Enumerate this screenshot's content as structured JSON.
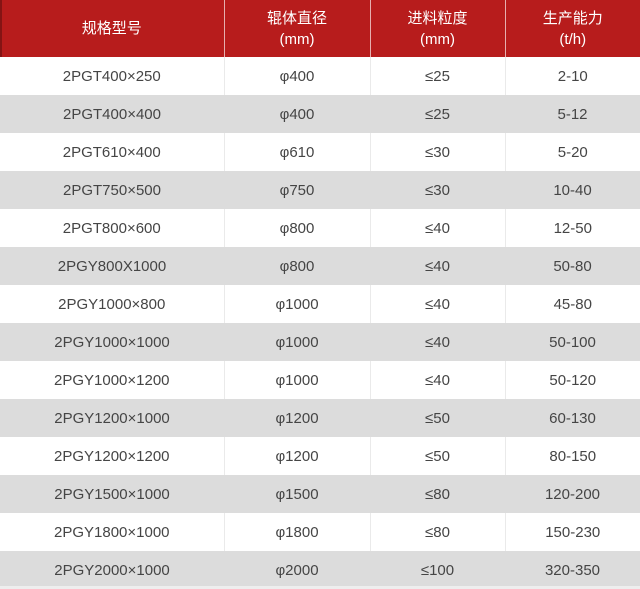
{
  "table": {
    "columns": [
      {
        "title": "规格型号",
        "unit": ""
      },
      {
        "title": "辊体直径",
        "unit": "(mm)"
      },
      {
        "title": "进料粒度",
        "unit": "(mm)"
      },
      {
        "title": "生产能力",
        "unit": "(t/h)"
      }
    ],
    "rows": [
      [
        "2PGT400×250",
        "φ400",
        "≤25",
        "2-10"
      ],
      [
        "2PGT400×400",
        "φ400",
        "≤25",
        "5-12"
      ],
      [
        "2PGT610×400",
        "φ610",
        "≤30",
        "5-20"
      ],
      [
        "2PGT750×500",
        "φ750",
        "≤30",
        "10-40"
      ],
      [
        "2PGT800×600",
        "φ800",
        "≤40",
        "12-50"
      ],
      [
        "2PGY800X1000",
        "φ800",
        "≤40",
        "50-80"
      ],
      [
        "2PGY1000×800",
        "φ1000",
        "≤40",
        "45-80"
      ],
      [
        "2PGY1000×1000",
        "φ1000",
        "≤40",
        "50-100"
      ],
      [
        "2PGY1000×1200",
        "φ1000",
        "≤40",
        "50-120"
      ],
      [
        "2PGY1200×1000",
        "φ1200",
        "≤50",
        "60-130"
      ],
      [
        "2PGY1200×1200",
        "φ1200",
        "≤50",
        "80-150"
      ],
      [
        "2PGY1500×1000",
        "φ1500",
        "≤80",
        "120-200"
      ],
      [
        "2PGY1800×1000",
        "φ1800",
        "≤80",
        "150-230"
      ],
      [
        "2PGY2000×1000",
        "φ2000",
        "≤100",
        "320-350"
      ]
    ]
  },
  "colors": {
    "header_bg": "#b71c1c",
    "header_text": "#ffffff",
    "row_bg": "#ffffff",
    "row_alt_bg": "#dcdcdc",
    "body_text": "#454545",
    "divider": "#eaeaea"
  },
  "chart_data": {
    "type": "table",
    "columns": [
      "规格型号",
      "辊体直径 (mm)",
      "进料粒度 (mm)",
      "生产能力 (t/h)"
    ],
    "rows": [
      [
        "2PGT400×250",
        "φ400",
        "≤25",
        "2-10"
      ],
      [
        "2PGT400×400",
        "φ400",
        "≤25",
        "5-12"
      ],
      [
        "2PGT610×400",
        "φ610",
        "≤30",
        "5-20"
      ],
      [
        "2PGT750×500",
        "φ750",
        "≤30",
        "10-40"
      ],
      [
        "2PGT800×600",
        "φ800",
        "≤40",
        "12-50"
      ],
      [
        "2PGY800X1000",
        "φ800",
        "≤40",
        "50-80"
      ],
      [
        "2PGY1000×800",
        "φ1000",
        "≤40",
        "45-80"
      ],
      [
        "2PGY1000×1000",
        "φ1000",
        "≤40",
        "50-100"
      ],
      [
        "2PGY1000×1200",
        "φ1000",
        "≤40",
        "50-120"
      ],
      [
        "2PGY1200×1000",
        "φ1200",
        "≤50",
        "60-130"
      ],
      [
        "2PGY1200×1200",
        "φ1200",
        "≤50",
        "80-150"
      ],
      [
        "2PGY1500×1000",
        "φ1500",
        "≤80",
        "120-200"
      ],
      [
        "2PGY1800×1000",
        "φ1800",
        "≤80",
        "150-230"
      ],
      [
        "2PGY2000×1000",
        "φ2000",
        "≤100",
        "320-350"
      ]
    ]
  }
}
